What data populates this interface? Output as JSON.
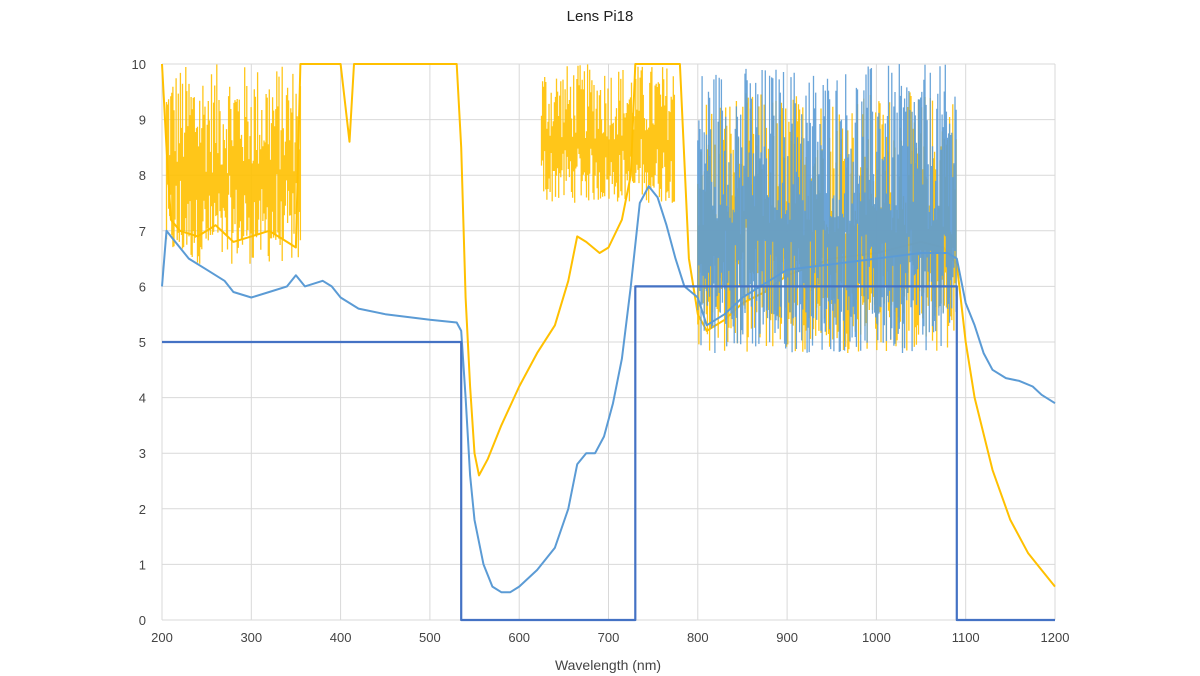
{
  "chart_data": {
    "type": "line",
    "title": "Lens Pi18",
    "xlabel": "Wavelength (nm)",
    "ylabel": "",
    "xlim": [
      200,
      1200
    ],
    "ylim": [
      0,
      10
    ],
    "x_ticks": [
      200,
      300,
      400,
      500,
      600,
      700,
      800,
      900,
      1000,
      1100,
      1200
    ],
    "y_ticks": [
      0,
      1,
      2,
      3,
      4,
      5,
      6,
      7,
      8,
      9,
      10
    ],
    "grid": true,
    "legend": "none",
    "series": [
      {
        "color": "#4472C4",
        "style": "step",
        "points": [
          [
            200,
            5
          ],
          [
            535,
            5
          ],
          [
            535,
            0
          ],
          [
            730,
            0
          ],
          [
            730,
            6
          ],
          [
            1090,
            6
          ],
          [
            1090,
            0
          ],
          [
            1200,
            0
          ]
        ]
      },
      {
        "color": "#FFC000",
        "noise_ranges": [
          [
            205,
            355,
            6.4,
            10
          ],
          [
            625,
            775,
            7.5,
            10
          ],
          [
            800,
            1090,
            4.8,
            9.5
          ]
        ],
        "points": [
          [
            200,
            10
          ],
          [
            205,
            8.5
          ],
          [
            210,
            7.2
          ],
          [
            220,
            7.0
          ],
          [
            240,
            6.9
          ],
          [
            260,
            7.1
          ],
          [
            280,
            6.8
          ],
          [
            300,
            6.9
          ],
          [
            320,
            7.0
          ],
          [
            340,
            6.8
          ],
          [
            350,
            6.7
          ],
          [
            355,
            10
          ],
          [
            400,
            10
          ],
          [
            410,
            8.6
          ],
          [
            415,
            10
          ],
          [
            530,
            10
          ],
          [
            535,
            8.5
          ],
          [
            540,
            5.8
          ],
          [
            545,
            4.2
          ],
          [
            550,
            3.0
          ],
          [
            555,
            2.6
          ],
          [
            565,
            2.9
          ],
          [
            580,
            3.5
          ],
          [
            600,
            4.2
          ],
          [
            620,
            4.8
          ],
          [
            640,
            5.3
          ],
          [
            655,
            6.1
          ],
          [
            665,
            6.9
          ],
          [
            675,
            6.8
          ],
          [
            690,
            6.6
          ],
          [
            700,
            6.7
          ],
          [
            715,
            7.2
          ],
          [
            725,
            8.0
          ],
          [
            730,
            10
          ],
          [
            780,
            10
          ],
          [
            790,
            6.5
          ],
          [
            800,
            5.5
          ],
          [
            810,
            5.2
          ],
          [
            830,
            5.4
          ],
          [
            850,
            5.7
          ],
          [
            875,
            5.9
          ],
          [
            900,
            6.2
          ],
          [
            950,
            6.5
          ],
          [
            1000,
            6.6
          ],
          [
            1050,
            6.8
          ],
          [
            1075,
            6.7
          ],
          [
            1090,
            6.4
          ],
          [
            1100,
            5.0
          ],
          [
            1110,
            4.0
          ],
          [
            1130,
            2.7
          ],
          [
            1150,
            1.8
          ],
          [
            1170,
            1.2
          ],
          [
            1185,
            0.9
          ],
          [
            1200,
            0.6
          ]
        ]
      },
      {
        "color": "#5B9BD5",
        "noise_ranges": [
          [
            800,
            1090,
            4.8,
            10
          ]
        ],
        "points": [
          [
            200,
            6.0
          ],
          [
            205,
            7.0
          ],
          [
            210,
            6.9
          ],
          [
            230,
            6.5
          ],
          [
            250,
            6.3
          ],
          [
            270,
            6.1
          ],
          [
            280,
            5.9
          ],
          [
            300,
            5.8
          ],
          [
            320,
            5.9
          ],
          [
            340,
            6.0
          ],
          [
            350,
            6.2
          ],
          [
            360,
            6.0
          ],
          [
            380,
            6.1
          ],
          [
            390,
            6.0
          ],
          [
            400,
            5.8
          ],
          [
            420,
            5.6
          ],
          [
            450,
            5.5
          ],
          [
            500,
            5.4
          ],
          [
            530,
            5.35
          ],
          [
            535,
            5.2
          ],
          [
            540,
            4.0
          ],
          [
            545,
            2.6
          ],
          [
            550,
            1.8
          ],
          [
            560,
            1.0
          ],
          [
            570,
            0.6
          ],
          [
            580,
            0.5
          ],
          [
            590,
            0.5
          ],
          [
            600,
            0.6
          ],
          [
            620,
            0.9
          ],
          [
            640,
            1.3
          ],
          [
            655,
            2.0
          ],
          [
            665,
            2.8
          ],
          [
            675,
            3.0
          ],
          [
            685,
            3.0
          ],
          [
            695,
            3.3
          ],
          [
            705,
            3.9
          ],
          [
            715,
            4.7
          ],
          [
            725,
            6.0
          ],
          [
            735,
            7.5
          ],
          [
            745,
            7.8
          ],
          [
            755,
            7.6
          ],
          [
            765,
            7.1
          ],
          [
            775,
            6.5
          ],
          [
            785,
            6.0
          ],
          [
            800,
            5.8
          ],
          [
            810,
            5.3
          ],
          [
            830,
            5.5
          ],
          [
            850,
            5.8
          ],
          [
            880,
            6.1
          ],
          [
            900,
            6.3
          ],
          [
            950,
            6.4
          ],
          [
            1000,
            6.5
          ],
          [
            1050,
            6.6
          ],
          [
            1080,
            6.6
          ],
          [
            1090,
            6.5
          ],
          [
            1100,
            5.7
          ],
          [
            1110,
            5.3
          ],
          [
            1120,
            4.8
          ],
          [
            1130,
            4.5
          ],
          [
            1145,
            4.35
          ],
          [
            1160,
            4.3
          ],
          [
            1175,
            4.2
          ],
          [
            1185,
            4.05
          ],
          [
            1200,
            3.9
          ]
        ]
      }
    ]
  }
}
